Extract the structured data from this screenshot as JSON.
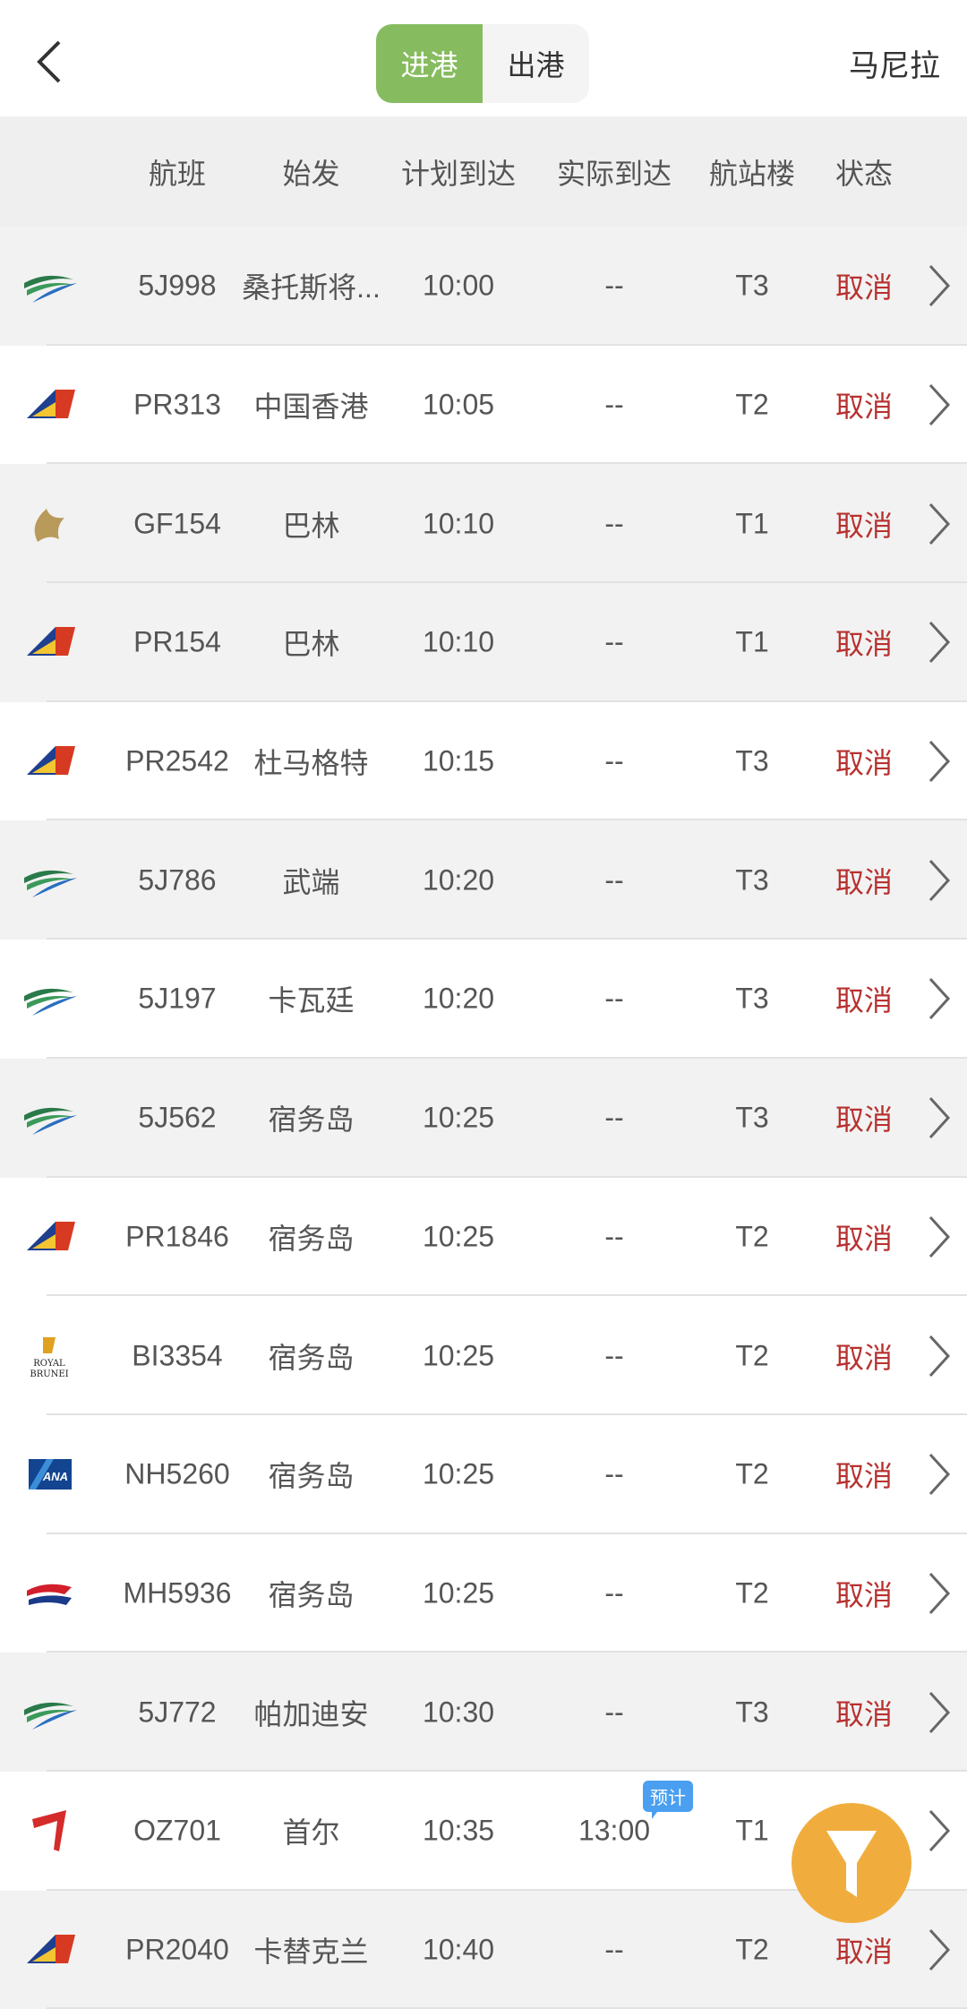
{
  "nav": {
    "back_icon": "chevron-left-icon",
    "tabs": [
      {
        "label": "进港",
        "active": true
      },
      {
        "label": "出港",
        "active": false
      }
    ],
    "city": "马尼拉"
  },
  "columns": [
    "航班",
    "始发",
    "计划到达",
    "实际到达",
    "航站楼",
    "状态"
  ],
  "colors": {
    "accent": "#86bc5f",
    "cancel": "#b8312f",
    "fab": "#f0ad3e",
    "estimate_tag": "#4a9ff0"
  },
  "flights": [
    {
      "airline": "cebu",
      "flight": "5J998",
      "origin": "桑托斯将...",
      "scheduled": "10:00",
      "actual": "--",
      "terminal": "T3",
      "status": "取消",
      "shaded": true
    },
    {
      "airline": "pal",
      "flight": "PR313",
      "origin": "中国香港",
      "scheduled": "10:05",
      "actual": "--",
      "terminal": "T2",
      "status": "取消",
      "shaded": false
    },
    {
      "airline": "gulf",
      "flight": "GF154",
      "origin": "巴林",
      "scheduled": "10:10",
      "actual": "--",
      "terminal": "T1",
      "status": "取消",
      "shaded": true
    },
    {
      "airline": "pal",
      "flight": "PR154",
      "origin": "巴林",
      "scheduled": "10:10",
      "actual": "--",
      "terminal": "T1",
      "status": "取消",
      "shaded": true
    },
    {
      "airline": "pal",
      "flight": "PR2542",
      "origin": "杜马格特",
      "scheduled": "10:15",
      "actual": "--",
      "terminal": "T3",
      "status": "取消",
      "shaded": false
    },
    {
      "airline": "cebu",
      "flight": "5J786",
      "origin": "武端",
      "scheduled": "10:20",
      "actual": "--",
      "terminal": "T3",
      "status": "取消",
      "shaded": true
    },
    {
      "airline": "cebu",
      "flight": "5J197",
      "origin": "卡瓦廷",
      "scheduled": "10:20",
      "actual": "--",
      "terminal": "T3",
      "status": "取消",
      "shaded": false
    },
    {
      "airline": "cebu",
      "flight": "5J562",
      "origin": "宿务岛",
      "scheduled": "10:25",
      "actual": "--",
      "terminal": "T3",
      "status": "取消",
      "shaded": true
    },
    {
      "airline": "pal",
      "flight": "PR1846",
      "origin": "宿务岛",
      "scheduled": "10:25",
      "actual": "--",
      "terminal": "T2",
      "status": "取消",
      "shaded": false
    },
    {
      "airline": "brunei",
      "flight": "BI3354",
      "origin": "宿务岛",
      "scheduled": "10:25",
      "actual": "--",
      "terminal": "T2",
      "status": "取消",
      "shaded": false
    },
    {
      "airline": "ana",
      "flight": "NH5260",
      "origin": "宿务岛",
      "scheduled": "10:25",
      "actual": "--",
      "terminal": "T2",
      "status": "取消",
      "shaded": false
    },
    {
      "airline": "mas",
      "flight": "MH5936",
      "origin": "宿务岛",
      "scheduled": "10:25",
      "actual": "--",
      "terminal": "T2",
      "status": "取消",
      "shaded": false
    },
    {
      "airline": "cebu",
      "flight": "5J772",
      "origin": "帕加迪安",
      "scheduled": "10:30",
      "actual": "--",
      "terminal": "T3",
      "status": "取消",
      "shaded": true
    },
    {
      "airline": "asiana",
      "flight": "OZ701",
      "origin": "首尔",
      "scheduled": "10:35",
      "actual": "13:00",
      "actual_tag": "预计",
      "terminal": "T1",
      "status": "",
      "shaded": false
    },
    {
      "airline": "pal",
      "flight": "PR2040",
      "origin": "卡替克兰",
      "scheduled": "10:40",
      "actual": "--",
      "terminal": "T2",
      "status": "取消",
      "shaded": true
    }
  ],
  "fab": {
    "icon": "filter-icon"
  }
}
